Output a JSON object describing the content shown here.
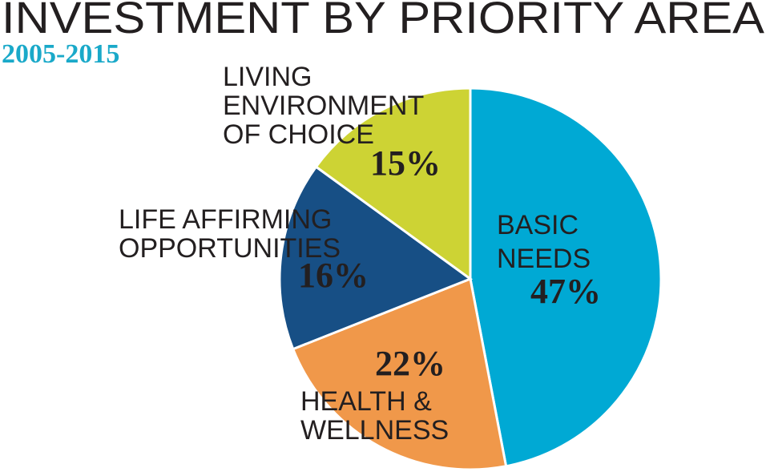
{
  "chart_data": {
    "type": "pie",
    "title": "INVESTMENT BY PRIORITY AREA",
    "subtitle": "2005-2015",
    "categories": [
      "BASIC NEEDS",
      "HEALTH & WELLNESS",
      "LIFE AFFIRMING OPPORTUNITIES",
      "LIVING ENVIRONMENT OF CHOICE"
    ],
    "values": [
      47,
      22,
      16,
      15
    ],
    "value_labels": [
      "47%",
      "22%",
      "16%",
      "15%"
    ],
    "colors": [
      "#00a9d4",
      "#f0984a",
      "#174f85",
      "#cdd334"
    ]
  }
}
